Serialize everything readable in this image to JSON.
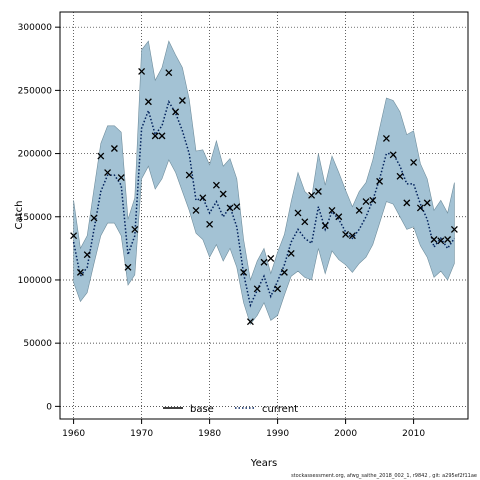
{
  "footer_note": "stockassessment.org, afwg_saithe_2018_002_1, r9842 , git: a295ef2f11ae",
  "chart_data": {
    "type": "line",
    "xlabel": "Years",
    "ylabel": "Catch",
    "xlim": [
      1958,
      2018
    ],
    "ylim": [
      -10000,
      312000
    ],
    "xticks": [
      1960,
      1970,
      1980,
      1990,
      2000,
      2010
    ],
    "yticks": [
      0,
      50000,
      100000,
      150000,
      200000,
      250000,
      300000
    ],
    "grid": true,
    "legend_position": "bottom-center",
    "legend": [
      {
        "label": "base",
        "style": "solid",
        "color": "#000000"
      },
      {
        "label": "current",
        "style": "dotted",
        "color": "#00205b"
      }
    ],
    "colors": {
      "band": "#a3c2d4",
      "band_edge": "#6f8d9c",
      "fit_line": "#00205b",
      "observed": "#000000"
    },
    "x": [
      1960,
      1961,
      1962,
      1963,
      1964,
      1965,
      1966,
      1967,
      1968,
      1969,
      1970,
      1971,
      1972,
      1973,
      1974,
      1975,
      1976,
      1977,
      1978,
      1979,
      1980,
      1981,
      1982,
      1983,
      1984,
      1985,
      1986,
      1987,
      1988,
      1989,
      1990,
      1991,
      1992,
      1993,
      1994,
      1995,
      1996,
      1997,
      1998,
      1999,
      2000,
      2001,
      2002,
      2003,
      2004,
      2005,
      2006,
      2007,
      2008,
      2009,
      2010,
      2011,
      2012,
      2013,
      2014,
      2015,
      2016
    ],
    "series": [
      {
        "name": "current",
        "values": [
          130000,
          103000,
          110000,
          140000,
          170000,
          183000,
          183000,
          175000,
          120000,
          135000,
          220000,
          234000,
          215000,
          222000,
          241000,
          232000,
          218000,
          200000,
          163000,
          165000,
          153000,
          162000,
          150000,
          158000,
          142000,
          105000,
          80000,
          92000,
          103000,
          87000,
          99000,
          112000,
          130000,
          140000,
          133000,
          129000,
          158000,
          140000,
          154000,
          148000,
          138000,
          133000,
          140000,
          150000,
          163000,
          180000,
          200000,
          200000,
          190000,
          176000,
          176000,
          160000,
          148000,
          126000,
          133000,
          125000,
          133000
        ],
        "lower": [
          98000,
          83000,
          90000,
          113000,
          135000,
          145000,
          145000,
          135000,
          96000,
          104000,
          180000,
          190000,
          172000,
          180000,
          195000,
          185000,
          170000,
          155000,
          137000,
          132000,
          118000,
          128000,
          115000,
          125000,
          110000,
          82000,
          65000,
          72000,
          82000,
          68000,
          72000,
          88000,
          103000,
          107000,
          102000,
          100000,
          125000,
          105000,
          123000,
          116000,
          112000,
          106000,
          113000,
          118000,
          128000,
          145000,
          162000,
          160000,
          150000,
          140000,
          142000,
          127000,
          118000,
          102000,
          107000,
          100000,
          113000
        ],
        "upper": [
          163000,
          125000,
          135000,
          172000,
          208000,
          222000,
          222000,
          217000,
          148000,
          165000,
          282000,
          289000,
          258000,
          268000,
          289000,
          278000,
          268000,
          243000,
          202000,
          203000,
          191000,
          210000,
          190000,
          196000,
          180000,
          132000,
          100000,
          115000,
          125000,
          105000,
          122000,
          136000,
          162000,
          185000,
          170000,
          165000,
          200000,
          175000,
          198000,
          185000,
          171000,
          158000,
          170000,
          177000,
          195000,
          220000,
          244000,
          242000,
          233000,
          215000,
          218000,
          192000,
          180000,
          155000,
          163000,
          153000,
          177000
        ]
      }
    ],
    "observed": [
      135000,
      106000,
      120000,
      149000,
      198000,
      185000,
      204000,
      181000,
      110000,
      140000,
      265000,
      241000,
      214000,
      214000,
      264000,
      233000,
      242000,
      183000,
      155000,
      165000,
      144000,
      175000,
      168000,
      157000,
      158000,
      106000,
      67000,
      93000,
      114000,
      117000,
      93000,
      106000,
      121000,
      153000,
      146000,
      167000,
      170000,
      143000,
      155000,
      150000,
      136000,
      135000,
      155000,
      162000,
      163000,
      178000,
      212000,
      199000,
      182000,
      161000,
      193000,
      157000,
      161000,
      132000,
      131000,
      132000,
      140000
    ]
  }
}
